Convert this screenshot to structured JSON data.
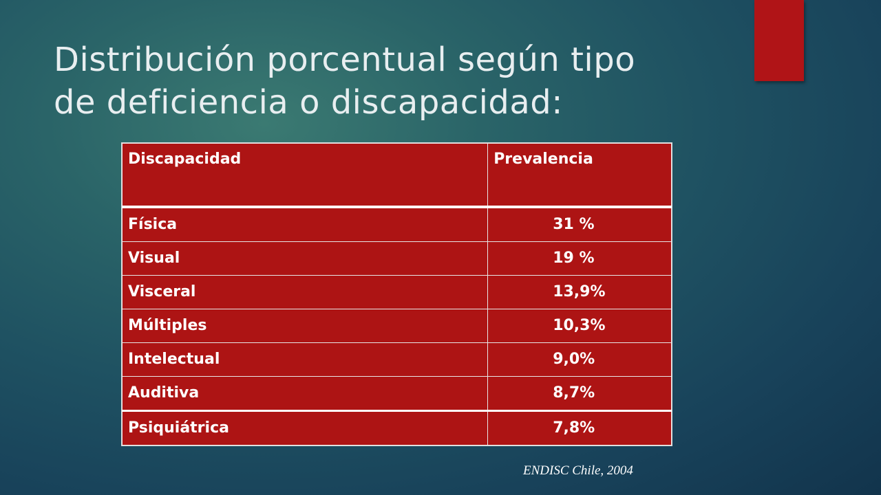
{
  "colors": {
    "accent": "#b01417",
    "title_text": "#e8eef0",
    "table_fill": "#ad1414",
    "table_text": "#ffffff"
  },
  "title": {
    "line1": "Distribución porcentual según tipo",
    "line2": "de deficiencia o discapacidad:"
  },
  "table": {
    "headers": [
      "Discapacidad",
      "Prevalencia"
    ],
    "rows": [
      {
        "label": "Física",
        "value": "31 %"
      },
      {
        "label": "Visual",
        "value": "19 %"
      },
      {
        "label": "Visceral",
        "value": "13,9%"
      },
      {
        "label": "Múltiples",
        "value": "10,3%"
      },
      {
        "label": "Intelectual",
        "value": "9,0%"
      },
      {
        "label": "Auditiva",
        "value": "8,7%"
      },
      {
        "label": "Psiquiátrica",
        "value": "7,8%"
      }
    ]
  },
  "source": "ENDISC Chile, 2004"
}
